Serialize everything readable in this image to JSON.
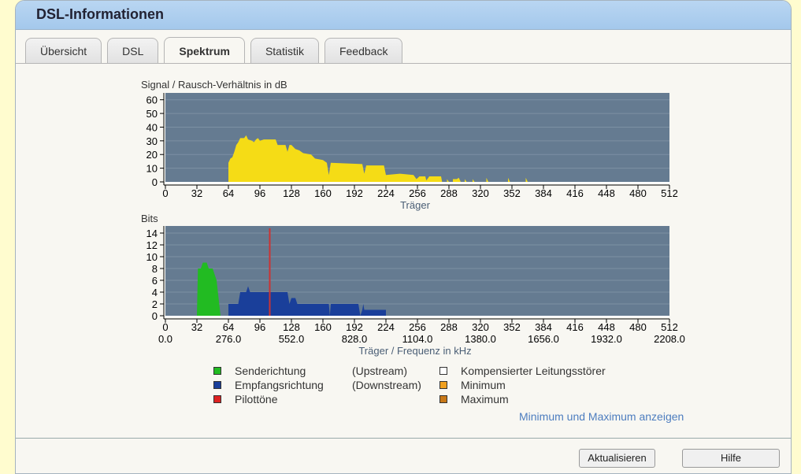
{
  "header": {
    "title": "DSL-Informationen"
  },
  "tabs": [
    {
      "label": "Übersicht",
      "active": false
    },
    {
      "label": "DSL",
      "active": false
    },
    {
      "label": "Spektrum",
      "active": true
    },
    {
      "label": "Statistik",
      "active": false
    },
    {
      "label": "Feedback",
      "active": false
    }
  ],
  "chart_data": [
    {
      "type": "area",
      "title": "Signal / Rausch-Verhältnis in dB",
      "xlabel": "Träger",
      "ylim": [
        0,
        65
      ],
      "xlim": [
        0,
        512
      ],
      "yticks": [
        0,
        10,
        20,
        30,
        40,
        50,
        60
      ],
      "xticks": [
        0,
        32,
        64,
        96,
        128,
        160,
        192,
        224,
        256,
        288,
        320,
        352,
        384,
        416,
        448,
        480,
        512
      ],
      "colors": {
        "plot_bg": "#657b91",
        "fill": "#f5dc16"
      },
      "series": [
        {
          "points": [
            [
              64,
              0
            ],
            [
              64,
              14
            ],
            [
              66,
              17
            ],
            [
              68,
              18
            ],
            [
              70,
              22
            ],
            [
              72,
              27
            ],
            [
              74,
              29
            ],
            [
              76,
              32
            ],
            [
              80,
              32
            ],
            [
              82,
              34
            ],
            [
              84,
              31
            ],
            [
              88,
              30
            ],
            [
              90,
              29
            ],
            [
              92,
              31
            ],
            [
              94,
              32
            ],
            [
              96,
              30
            ],
            [
              100,
              31
            ],
            [
              112,
              31
            ],
            [
              114,
              27
            ],
            [
              122,
              27
            ],
            [
              124,
              22
            ],
            [
              126,
              27
            ],
            [
              128,
              27
            ],
            [
              132,
              24
            ],
            [
              136,
              23
            ],
            [
              140,
              21
            ],
            [
              148,
              20
            ],
            [
              152,
              17
            ],
            [
              160,
              16
            ],
            [
              164,
              14
            ],
            [
              166,
              5
            ],
            [
              168,
              14
            ],
            [
              200,
              13
            ],
            [
              202,
              6
            ],
            [
              204,
              12
            ],
            [
              222,
              12
            ],
            [
              224,
              5
            ],
            [
              238,
              6
            ],
            [
              252,
              5
            ],
            [
              255,
              2
            ],
            [
              258,
              4
            ],
            [
              264,
              4
            ],
            [
              265,
              1
            ],
            [
              268,
              4
            ],
            [
              280,
              4
            ],
            [
              281,
              0
            ],
            [
              286,
              0
            ],
            [
              286,
              2
            ],
            [
              288,
              0
            ],
            [
              292,
              0
            ],
            [
              292,
              2
            ],
            [
              296,
              2
            ],
            [
              298,
              3
            ],
            [
              300,
              0
            ],
            [
              304,
              0
            ],
            [
              304,
              2
            ],
            [
              306,
              0
            ],
            [
              312,
              0
            ],
            [
              312,
              2
            ],
            [
              314,
              0
            ],
            [
              326,
              0
            ],
            [
              326,
              3
            ],
            [
              328,
              0
            ],
            [
              348,
              0
            ],
            [
              348,
              3
            ],
            [
              350,
              0
            ],
            [
              366,
              0
            ],
            [
              366,
              3
            ],
            [
              368,
              0
            ]
          ]
        }
      ]
    },
    {
      "type": "area",
      "title": "Bits",
      "xlabel": "Träger / Frequenz in kHz",
      "ylim": [
        0,
        15.2
      ],
      "xlim": [
        0,
        512
      ],
      "yticks": [
        0,
        2,
        4,
        6,
        8,
        10,
        12,
        14
      ],
      "xticks": [
        0,
        32,
        64,
        96,
        128,
        160,
        192,
        224,
        256,
        288,
        320,
        352,
        384,
        416,
        448,
        480,
        512
      ],
      "freq_ticks": [
        "0.0",
        "276.0",
        "552.0",
        "828.0",
        "1104.0",
        "1380.0",
        "1656.0",
        "1932.0",
        "2208.0"
      ],
      "colors": {
        "plot_bg": "#657b91",
        "upstream": "#22bb22",
        "downstream": "#1a3f9a",
        "pilot": "#cc3333"
      },
      "series": [
        {
          "name": "Senderichtung",
          "points": [
            [
              32,
              0
            ],
            [
              33,
              8
            ],
            [
              36,
              8
            ],
            [
              38,
              9
            ],
            [
              42,
              9
            ],
            [
              44,
              8
            ],
            [
              48,
              8
            ],
            [
              50,
              7
            ],
            [
              52,
              6
            ],
            [
              54,
              3
            ],
            [
              56,
              0
            ]
          ]
        },
        {
          "name": "Empfangsrichtung",
          "points": [
            [
              64,
              0
            ],
            [
              64,
              2
            ],
            [
              74,
              2
            ],
            [
              76,
              4
            ],
            [
              82,
              4
            ],
            [
              84,
              5
            ],
            [
              86,
              4
            ],
            [
              124,
              4
            ],
            [
              126,
              2
            ],
            [
              128,
              3
            ],
            [
              132,
              3
            ],
            [
              134,
              2
            ],
            [
              166,
              2
            ],
            [
              167,
              0
            ],
            [
              168,
              2
            ],
            [
              196,
              2
            ],
            [
              198,
              0
            ],
            [
              200,
              1
            ],
            [
              201,
              2
            ],
            [
              202,
              1
            ],
            [
              224,
              1
            ],
            [
              224,
              0
            ]
          ]
        },
        {
          "name": "Pilottöne",
          "carrier": 106
        }
      ]
    }
  ],
  "legend": [
    {
      "label": "Senderichtung",
      "dir": "(Upstream)",
      "color": "#22bb22"
    },
    {
      "label": "Empfangsrichtung",
      "dir": "(Downstream)",
      "color": "#1a3f9a"
    },
    {
      "label": "Pilottöne",
      "color": "#dd2222"
    },
    {
      "label": "Kompensierter Leitungsstörer",
      "color": "#ffffff"
    },
    {
      "label": "Minimum",
      "color": "#f0a020"
    },
    {
      "label": "Maximum",
      "color": "#c87818"
    }
  ],
  "link": "Minimum und Maximum anzeigen",
  "buttons": {
    "refresh": "Aktualisieren",
    "help": "Hilfe"
  }
}
